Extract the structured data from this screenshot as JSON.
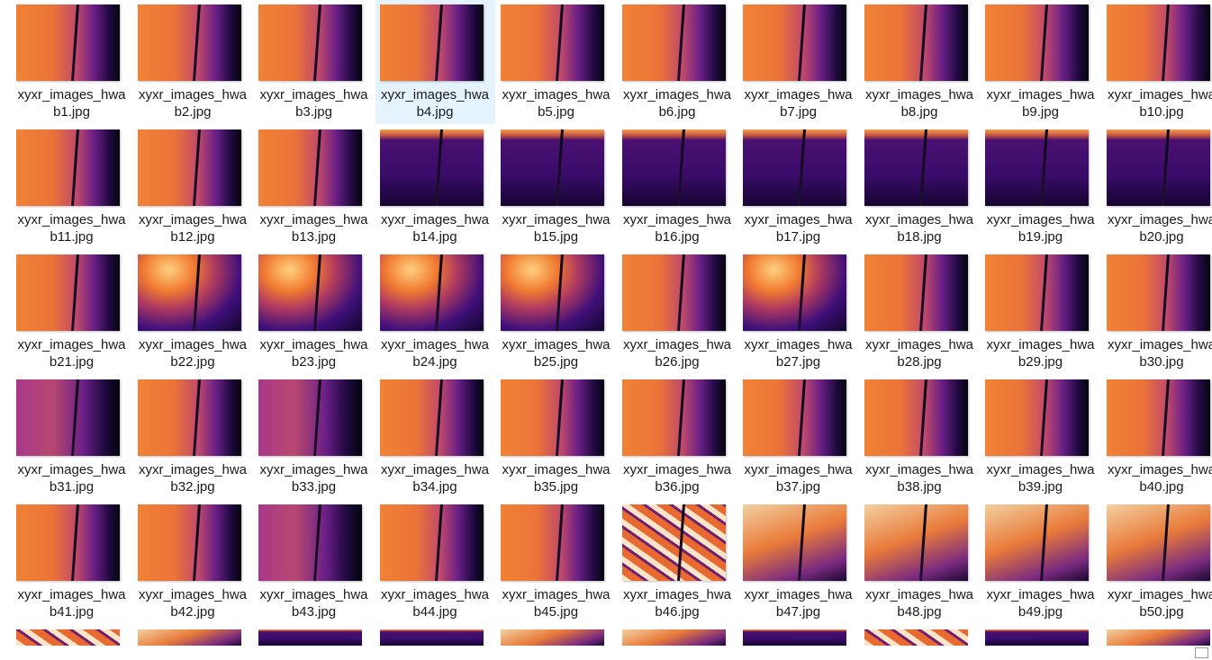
{
  "files": [
    {
      "name": [
        "xyxr_images_hwa",
        "b1.jpg"
      ]
    },
    {
      "name": [
        "xyxr_images_hwa",
        "b2.jpg"
      ]
    },
    {
      "name": [
        "xyxr_images_hwa",
        "b3.jpg"
      ]
    },
    {
      "name": [
        "xyxr_images_hwa",
        "b4.jpg"
      ]
    },
    {
      "name": [
        "xyxr_images_hwa",
        "b5.jpg"
      ]
    },
    {
      "name": [
        "xyxr_images_hwa",
        "b6.jpg"
      ]
    },
    {
      "name": [
        "xyxr_images_hwa",
        "b7.jpg"
      ]
    },
    {
      "name": [
        "xyxr_images_hwa",
        "b8.jpg"
      ]
    },
    {
      "name": [
        "xyxr_images_hwa",
        "b9.jpg"
      ]
    },
    {
      "name": [
        "xyxr_images_hwa",
        "b10.jpg"
      ]
    },
    {
      "name": [
        "xyxr_images_hwa",
        "b11.jpg"
      ]
    },
    {
      "name": [
        "xyxr_images_hwa",
        "b12.jpg"
      ]
    },
    {
      "name": [
        "xyxr_images_hwa",
        "b13.jpg"
      ]
    },
    {
      "name": [
        "xyxr_images_hwa",
        "b14.jpg"
      ]
    },
    {
      "name": [
        "xyxr_images_hwa",
        "b15.jpg"
      ]
    },
    {
      "name": [
        "xyxr_images_hwa",
        "b16.jpg"
      ]
    },
    {
      "name": [
        "xyxr_images_hwa",
        "b17.jpg"
      ]
    },
    {
      "name": [
        "xyxr_images_hwa",
        "b18.jpg"
      ]
    },
    {
      "name": [
        "xyxr_images_hwa",
        "b19.jpg"
      ]
    },
    {
      "name": [
        "xyxr_images_hwa",
        "b20.jpg"
      ]
    },
    {
      "name": [
        "xyxr_images_hwa",
        "b21.jpg"
      ]
    },
    {
      "name": [
        "xyxr_images_hwa",
        "b22.jpg"
      ]
    },
    {
      "name": [
        "xyxr_images_hwa",
        "b23.jpg"
      ]
    },
    {
      "name": [
        "xyxr_images_hwa",
        "b24.jpg"
      ]
    },
    {
      "name": [
        "xyxr_images_hwa",
        "b25.jpg"
      ]
    },
    {
      "name": [
        "xyxr_images_hwa",
        "b26.jpg"
      ]
    },
    {
      "name": [
        "xyxr_images_hwa",
        "b27.jpg"
      ]
    },
    {
      "name": [
        "xyxr_images_hwa",
        "b28.jpg"
      ]
    },
    {
      "name": [
        "xyxr_images_hwa",
        "b29.jpg"
      ]
    },
    {
      "name": [
        "xyxr_images_hwa",
        "b30.jpg"
      ]
    },
    {
      "name": [
        "xyxr_images_hwa",
        "b31.jpg"
      ]
    },
    {
      "name": [
        "xyxr_images_hwa",
        "b32.jpg"
      ]
    },
    {
      "name": [
        "xyxr_images_hwa",
        "b33.jpg"
      ]
    },
    {
      "name": [
        "xyxr_images_hwa",
        "b34.jpg"
      ]
    },
    {
      "name": [
        "xyxr_images_hwa",
        "b35.jpg"
      ]
    },
    {
      "name": [
        "xyxr_images_hwa",
        "b36.jpg"
      ]
    },
    {
      "name": [
        "xyxr_images_hwa",
        "b37.jpg"
      ]
    },
    {
      "name": [
        "xyxr_images_hwa",
        "b38.jpg"
      ]
    },
    {
      "name": [
        "xyxr_images_hwa",
        "b39.jpg"
      ]
    },
    {
      "name": [
        "xyxr_images_hwa",
        "b40.jpg"
      ]
    },
    {
      "name": [
        "xyxr_images_hwa",
        "b41.jpg"
      ]
    },
    {
      "name": [
        "xyxr_images_hwa",
        "b42.jpg"
      ]
    },
    {
      "name": [
        "xyxr_images_hwa",
        "b43.jpg"
      ]
    },
    {
      "name": [
        "xyxr_images_hwa",
        "b44.jpg"
      ]
    },
    {
      "name": [
        "xyxr_images_hwa",
        "b45.jpg"
      ]
    },
    {
      "name": [
        "xyxr_images_hwa",
        "b46.jpg"
      ]
    },
    {
      "name": [
        "xyxr_images_hwa",
        "b47.jpg"
      ]
    },
    {
      "name": [
        "xyxr_images_hwa",
        "b48.jpg"
      ]
    },
    {
      "name": [
        "xyxr_images_hwa",
        "b49.jpg"
      ]
    },
    {
      "name": [
        "xyxr_images_hwa",
        "b50.jpg"
      ]
    }
  ]
}
